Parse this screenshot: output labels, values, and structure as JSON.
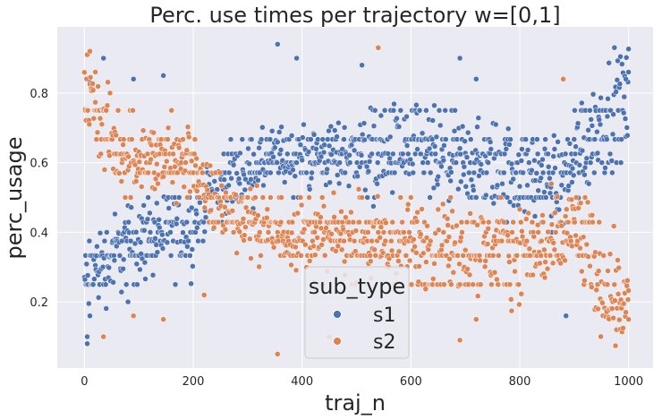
{
  "chart_data": {
    "type": "scatter",
    "title": "Perc. use times per trajectory w=[0,1]",
    "xlabel": "traj_n",
    "ylabel": "perc_usage",
    "xlim": [
      -50,
      1045
    ],
    "ylim": [
      0.01,
      0.99
    ],
    "xticks": [
      "0",
      "200",
      "400",
      "600",
      "800",
      "1000"
    ],
    "xtick_values": [
      0,
      200,
      400,
      600,
      800,
      1000
    ],
    "yticks": [
      "0.2",
      "0.4",
      "0.6",
      "0.8"
    ],
    "ytick_values": [
      0.2,
      0.4,
      0.6,
      0.8
    ],
    "grid": true,
    "background": "#eaeaf2",
    "legend": {
      "title": "sub_type",
      "placement": "bottom-center",
      "entries": [
        {
          "label": "s1",
          "color": "#4c72b0"
        },
        {
          "label": "s2",
          "color": "#dd8452"
        }
      ]
    },
    "series": [
      {
        "name": "s1",
        "color": "#4c72b0",
        "trend": [
          [
            0,
            0.26
          ],
          [
            50,
            0.33
          ],
          [
            100,
            0.38
          ],
          [
            150,
            0.4
          ],
          [
            200,
            0.41
          ],
          [
            215,
            0.48
          ],
          [
            260,
            0.55
          ],
          [
            350,
            0.61
          ],
          [
            450,
            0.62
          ],
          [
            500,
            0.63
          ],
          [
            600,
            0.63
          ],
          [
            700,
            0.6
          ],
          [
            800,
            0.58
          ],
          [
            880,
            0.54
          ],
          [
            900,
            0.62
          ],
          [
            950,
            0.72
          ],
          [
            1000,
            0.78
          ]
        ],
        "highlights": [
          [
            5,
            0.08
          ],
          [
            5,
            0.1
          ],
          [
            10,
            0.16
          ],
          [
            10,
            0.83
          ],
          [
            35,
            0.9
          ],
          [
            80,
            0.2
          ],
          [
            90,
            0.84
          ],
          [
            145,
            0.85
          ],
          [
            355,
            0.94
          ],
          [
            390,
            0.9
          ],
          [
            510,
            0.88
          ],
          [
            690,
            0.9
          ],
          [
            720,
            0.84
          ],
          [
            885,
            0.16
          ],
          [
            1000,
            0.86
          ],
          [
            995,
            0.84
          ]
        ]
      },
      {
        "name": "s2",
        "color": "#dd8452",
        "trend": [
          [
            0,
            0.82
          ],
          [
            30,
            0.72
          ],
          [
            60,
            0.64
          ],
          [
            100,
            0.62
          ],
          [
            150,
            0.6
          ],
          [
            200,
            0.62
          ],
          [
            215,
            0.52
          ],
          [
            260,
            0.47
          ],
          [
            350,
            0.4
          ],
          [
            450,
            0.39
          ],
          [
            550,
            0.37
          ],
          [
            650,
            0.36
          ],
          [
            750,
            0.35
          ],
          [
            850,
            0.35
          ],
          [
            880,
            0.38
          ],
          [
            900,
            0.42
          ],
          [
            950,
            0.26
          ],
          [
            1000,
            0.2
          ]
        ],
        "highlights": [
          [
            5,
            0.91
          ],
          [
            10,
            0.92
          ],
          [
            20,
            0.86
          ],
          [
            35,
            0.1
          ],
          [
            90,
            0.16
          ],
          [
            145,
            0.15
          ],
          [
            220,
            0.22
          ],
          [
            355,
            0.05
          ],
          [
            450,
            0.1
          ],
          [
            540,
            0.93
          ],
          [
            690,
            0.09
          ],
          [
            720,
            0.15
          ],
          [
            880,
            0.84
          ],
          [
            1000,
            0.15
          ],
          [
            995,
            0.17
          ]
        ]
      }
    ]
  }
}
